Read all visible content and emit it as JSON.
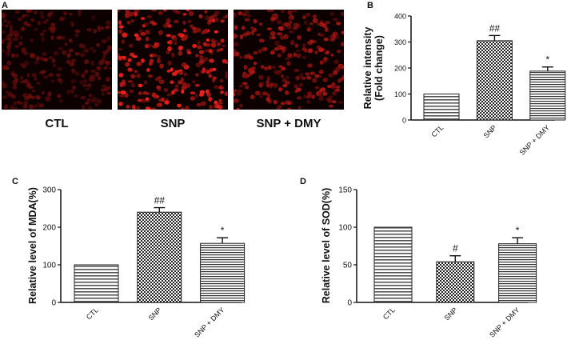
{
  "panel_a": {
    "letter": "A",
    "images": [
      {
        "label": "CTL",
        "density": 0.35
      },
      {
        "label": "SNP",
        "density": 1.0
      },
      {
        "label": "SNP + DMY",
        "density": 0.7
      }
    ]
  },
  "colors": {
    "fluorescence": "#e01818",
    "background": "#0c0000",
    "bar_stroke": "#222222"
  },
  "chart_data": [
    {
      "panel": "B",
      "type": "bar",
      "categories": [
        "CTL",
        "SNP",
        "SNP + DMY"
      ],
      "values": [
        100,
        305,
        188
      ],
      "errors": [
        0,
        20,
        16
      ],
      "annotations": [
        "",
        "##",
        "*"
      ],
      "ylabel": "Relative intensity\n(Fold change)",
      "ylim": [
        0,
        400
      ],
      "yticks": [
        0,
        100,
        200,
        300,
        400
      ],
      "grid": false
    },
    {
      "panel": "C",
      "type": "bar",
      "categories": [
        "CTL",
        "SNP",
        "SNP + DMY"
      ],
      "values": [
        100,
        240,
        157
      ],
      "errors": [
        0,
        12,
        15
      ],
      "annotations": [
        "",
        "##",
        "*"
      ],
      "ylabel": "Relative level of MDA(%)",
      "ylim": [
        0,
        300
      ],
      "yticks": [
        0,
        100,
        200,
        300
      ],
      "grid": false
    },
    {
      "panel": "D",
      "type": "bar",
      "categories": [
        "CTL",
        "SNP",
        "SNP + DMY"
      ],
      "values": [
        100,
        54,
        78
      ],
      "errors": [
        0,
        8,
        8
      ],
      "annotations": [
        "",
        "#",
        "*"
      ],
      "ylabel": "Relative level of SOD(%)",
      "ylim": [
        0,
        150
      ],
      "yticks": [
        0,
        50,
        100,
        150
      ],
      "grid": false
    }
  ]
}
